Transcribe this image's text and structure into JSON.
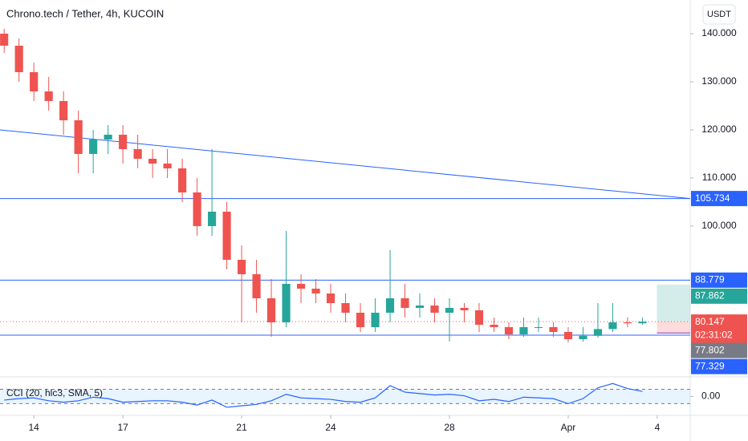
{
  "chart_data": {
    "type": "candlestick",
    "title": "Chrono.tech / Tether, 4h, KUCOIN",
    "currency_button": "USDT",
    "x": [
      13,
      13.5,
      14,
      14.5,
      15,
      15.5,
      16,
      16.5,
      17,
      17.5,
      18,
      18.5,
      19,
      19.5,
      20,
      20.5,
      21,
      21.5,
      22,
      22.5,
      23,
      23.5,
      24,
      24.5,
      25,
      25.5,
      26,
      26.5,
      27,
      27.5,
      28,
      28.5,
      29,
      29.5,
      30,
      30.5,
      31,
      31.5,
      32,
      32.5,
      33,
      33.5,
      34,
      34.5
    ],
    "open": [
      140,
      137.5,
      132,
      128,
      126,
      122,
      115,
      118,
      119,
      116,
      114,
      113,
      112,
      107,
      100,
      103,
      93,
      90,
      85,
      80,
      88,
      87,
      86,
      84,
      82,
      79,
      82,
      85,
      83,
      83.5,
      82,
      83,
      82.5,
      79.5,
      79,
      77.5,
      79,
      79,
      78,
      76.5,
      77.2,
      78.6,
      80,
      79.8
    ],
    "high": [
      141,
      139,
      134,
      131,
      128,
      124,
      120,
      121,
      121,
      119,
      116,
      116,
      114,
      110,
      116,
      105,
      96,
      93,
      89,
      99,
      90,
      89,
      88,
      86,
      84,
      85,
      95,
      88,
      86,
      85,
      85,
      84,
      84,
      81,
      80,
      81,
      81,
      80,
      79,
      79,
      84,
      84,
      81,
      81
    ],
    "low": [
      136,
      130,
      126,
      124,
      119,
      111,
      111,
      115,
      113,
      112,
      110,
      110,
      105,
      98,
      98,
      91,
      80,
      82,
      77,
      79,
      84,
      84,
      82,
      80,
      78,
      78,
      80,
      81,
      81,
      80,
      76,
      80,
      78,
      78,
      76.5,
      77,
      78,
      77,
      75.8,
      76,
      76.8,
      78,
      79,
      79.5
    ],
    "close": [
      137.5,
      132,
      128,
      126,
      122,
      115,
      118,
      119,
      116,
      114,
      113,
      112,
      107,
      100,
      103,
      93,
      90,
      85,
      80,
      88,
      87,
      86,
      84,
      82,
      79,
      82,
      85,
      83,
      83.5,
      82,
      83,
      82.5,
      79.5,
      79,
      77.5,
      79,
      79,
      78,
      76.5,
      77.2,
      78.6,
      80,
      79.8,
      80.147
    ],
    "up_color": "#26a69a",
    "down_color": "#ef5350",
    "xlim": [
      12.86,
      36.11
    ],
    "xticks": [
      14,
      17,
      21,
      24,
      28,
      {
        "value": 32,
        "label": "Apr"
      },
      {
        "value": 35,
        "label": "4"
      }
    ],
    "ylim": [
      68.67,
      147
    ],
    "yticks": [
      {
        "value": 100,
        "label": "100.000"
      },
      {
        "value": 110,
        "label": "110.000"
      },
      {
        "value": 120,
        "label": "120.000"
      },
      {
        "value": 130,
        "label": "130.000"
      },
      {
        "value": 140,
        "label": "140.000"
      }
    ],
    "horizontal_lines": [
      105.734,
      88.779,
      77.329
    ],
    "line_color": "#2962ff",
    "trendline": {
      "x": [
        12.86,
        36.11
      ],
      "y": [
        120,
        105.734
      ]
    },
    "position": {
      "target": 87.862,
      "entry": 80.147,
      "stop": 77.802
    },
    "price_labels": [
      {
        "value": 105.734,
        "color": "#2962ff"
      },
      {
        "value": 88.779,
        "color": "#2962ff"
      },
      {
        "value": 87.862,
        "color": "#26a69a"
      },
      {
        "value": 80.147,
        "color": "#ef5350"
      },
      {
        "value": 77.802,
        "color": "#787b86"
      },
      {
        "value": 77.329,
        "color": "#2962ff"
      }
    ],
    "countdown": "02:31:02",
    "indicator": {
      "label": "CCI (20, hlc3, SMA, 5)",
      "values": [
        -50,
        -30,
        -20,
        -60,
        -80,
        -60,
        -10,
        -30,
        -80,
        -70,
        -60,
        -60,
        -80,
        -120,
        -50,
        -150,
        -130,
        -110,
        -60,
        30,
        -20,
        -30,
        -40,
        -70,
        -80,
        -20,
        150,
        60,
        40,
        20,
        30,
        10,
        -60,
        -40,
        -70,
        -10,
        -20,
        -30,
        -100,
        -30,
        120,
        180,
        110,
        70
      ],
      "color": "#2962ff",
      "ylim": [
        -240,
        250
      ],
      "yticks": [
        {
          "value": 0,
          "label": "0.00"
        }
      ],
      "bands": [
        -100,
        100
      ]
    }
  }
}
